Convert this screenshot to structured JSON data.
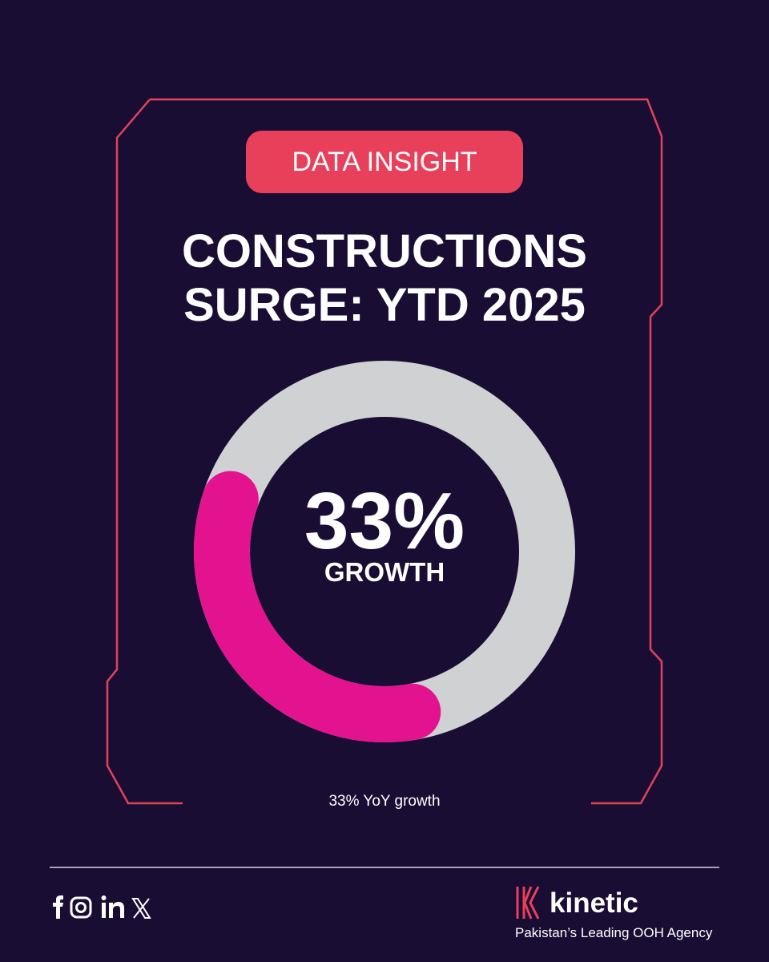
{
  "badge": "DATA INSIGHT",
  "chart_data": {
    "type": "donut",
    "title": "CONSTRUCTIONS SURGE: YTD 2025",
    "values": [
      33
    ],
    "value_labels": [
      "33%"
    ],
    "center_label": "GROWTH",
    "caption": "33% YoY growth",
    "ylim": [
      0,
      100
    ],
    "color": "#e3138f",
    "track_color": "#d0d1d3"
  },
  "footer": {
    "brand": "kinetic",
    "tagline": "Pakistan’s Leading OOH Agency"
  }
}
